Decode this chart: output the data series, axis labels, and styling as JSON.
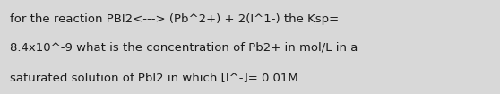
{
  "text_lines": [
    "for the reaction PBI2<---> (Pb^2+) + 2(I^1-) the Ksp=",
    "8.4x10^-9 what is the concentration of Pb2+ in mol/L in a",
    "saturated solution of PbI2 in which [I^-]= 0.01M"
  ],
  "background_color": "#d8d8d8",
  "text_color": "#1a1a1a",
  "font_size": 9.5,
  "fig_width": 5.58,
  "fig_height": 1.05,
  "dpi": 100
}
